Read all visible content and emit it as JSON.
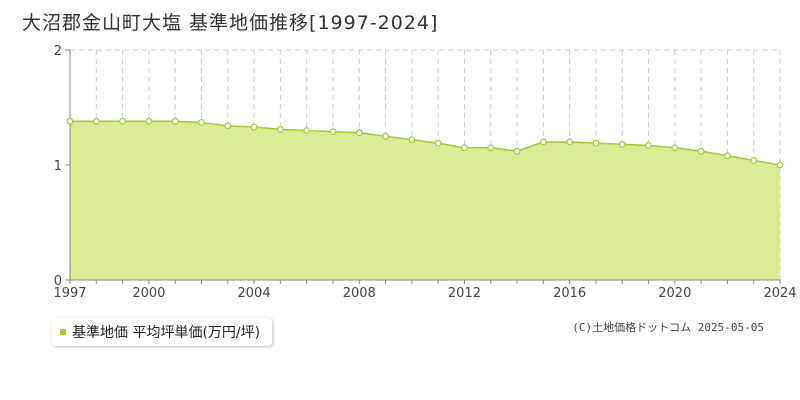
{
  "header": {
    "title": "大沼郡金山町大塩 基準地価推移[1997-2024]"
  },
  "legend": {
    "label": "基準地価 平均坪単価(万円/坪)"
  },
  "footer": {
    "copyright": "(C)土地価格ドットコム 2025-05-05"
  },
  "colors": {
    "fill": "#dbeb95",
    "line": "#a3c93a",
    "marker_fill": "#ffffff",
    "grid": "#cccccc"
  },
  "chart_data": {
    "type": "area",
    "title": "大沼郡金山町大塩 基準地価推移[1997-2024]",
    "x": [
      1997,
      1998,
      1999,
      2000,
      2001,
      2002,
      2003,
      2004,
      2005,
      2006,
      2007,
      2008,
      2009,
      2010,
      2011,
      2012,
      2013,
      2014,
      2015,
      2016,
      2017,
      2018,
      2019,
      2020,
      2021,
      2022,
      2023,
      2024
    ],
    "series": [
      {
        "name": "基準地価 平均坪単価(万円/坪)",
        "values": [
          1.38,
          1.38,
          1.38,
          1.38,
          1.38,
          1.37,
          1.34,
          1.33,
          1.31,
          1.3,
          1.29,
          1.28,
          1.25,
          1.22,
          1.19,
          1.15,
          1.15,
          1.12,
          1.2,
          1.2,
          1.19,
          1.18,
          1.17,
          1.15,
          1.12,
          1.08,
          1.04,
          1.0
        ]
      }
    ],
    "x_tick_labels": [
      "1997",
      "2000",
      "2004",
      "2008",
      "2012",
      "2016",
      "2020",
      "2024"
    ],
    "y_tick_labels": [
      "0",
      "1",
      "2"
    ],
    "xlim": [
      1997,
      2024
    ],
    "ylim": [
      0,
      2
    ],
    "grid": true,
    "legend_position": "bottom-left"
  }
}
